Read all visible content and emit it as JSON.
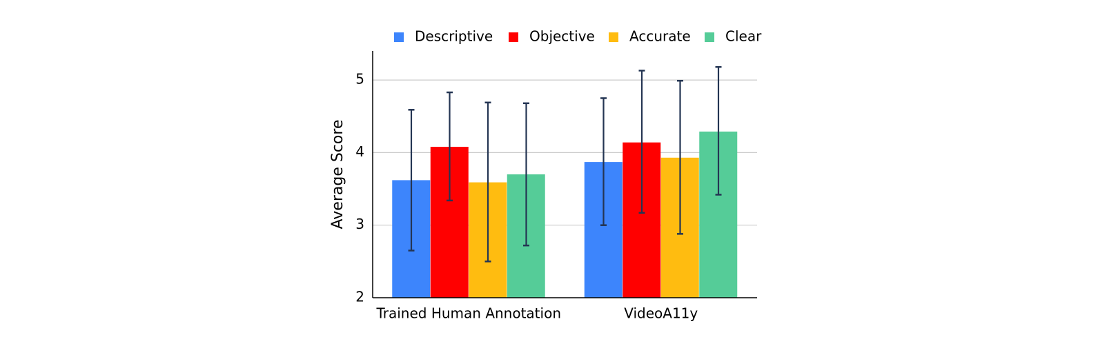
{
  "chart_data": {
    "type": "bar",
    "title": "",
    "xlabel": "",
    "ylabel": "Average Score",
    "ylim": [
      2,
      5.4
    ],
    "yticks": [
      2,
      3,
      4,
      5
    ],
    "grid": true,
    "legend_position": "top",
    "categories": [
      "Trained Human Annotation",
      "VideoA11y"
    ],
    "series": [
      {
        "name": "Descriptive",
        "color": "#3d85fc",
        "values": [
          3.62,
          3.87
        ],
        "error_low": [
          2.65,
          3.0
        ],
        "error_high": [
          4.59,
          4.75
        ]
      },
      {
        "name": "Objective",
        "color": "#ff0000",
        "values": [
          4.08,
          4.14
        ],
        "error_low": [
          3.34,
          3.17
        ],
        "error_high": [
          4.83,
          5.13
        ]
      },
      {
        "name": "Accurate",
        "color": "#ffbc10",
        "values": [
          3.59,
          3.93
        ],
        "error_low": [
          2.5,
          2.88
        ],
        "error_high": [
          4.69,
          4.99
        ]
      },
      {
        "name": "Clear",
        "color": "#55cc98",
        "values": [
          3.7,
          4.29
        ],
        "error_low": [
          2.72,
          3.42
        ],
        "error_high": [
          4.68,
          5.18
        ]
      }
    ],
    "error_bar_color": "#243553",
    "grid_color": "#cccccc"
  }
}
